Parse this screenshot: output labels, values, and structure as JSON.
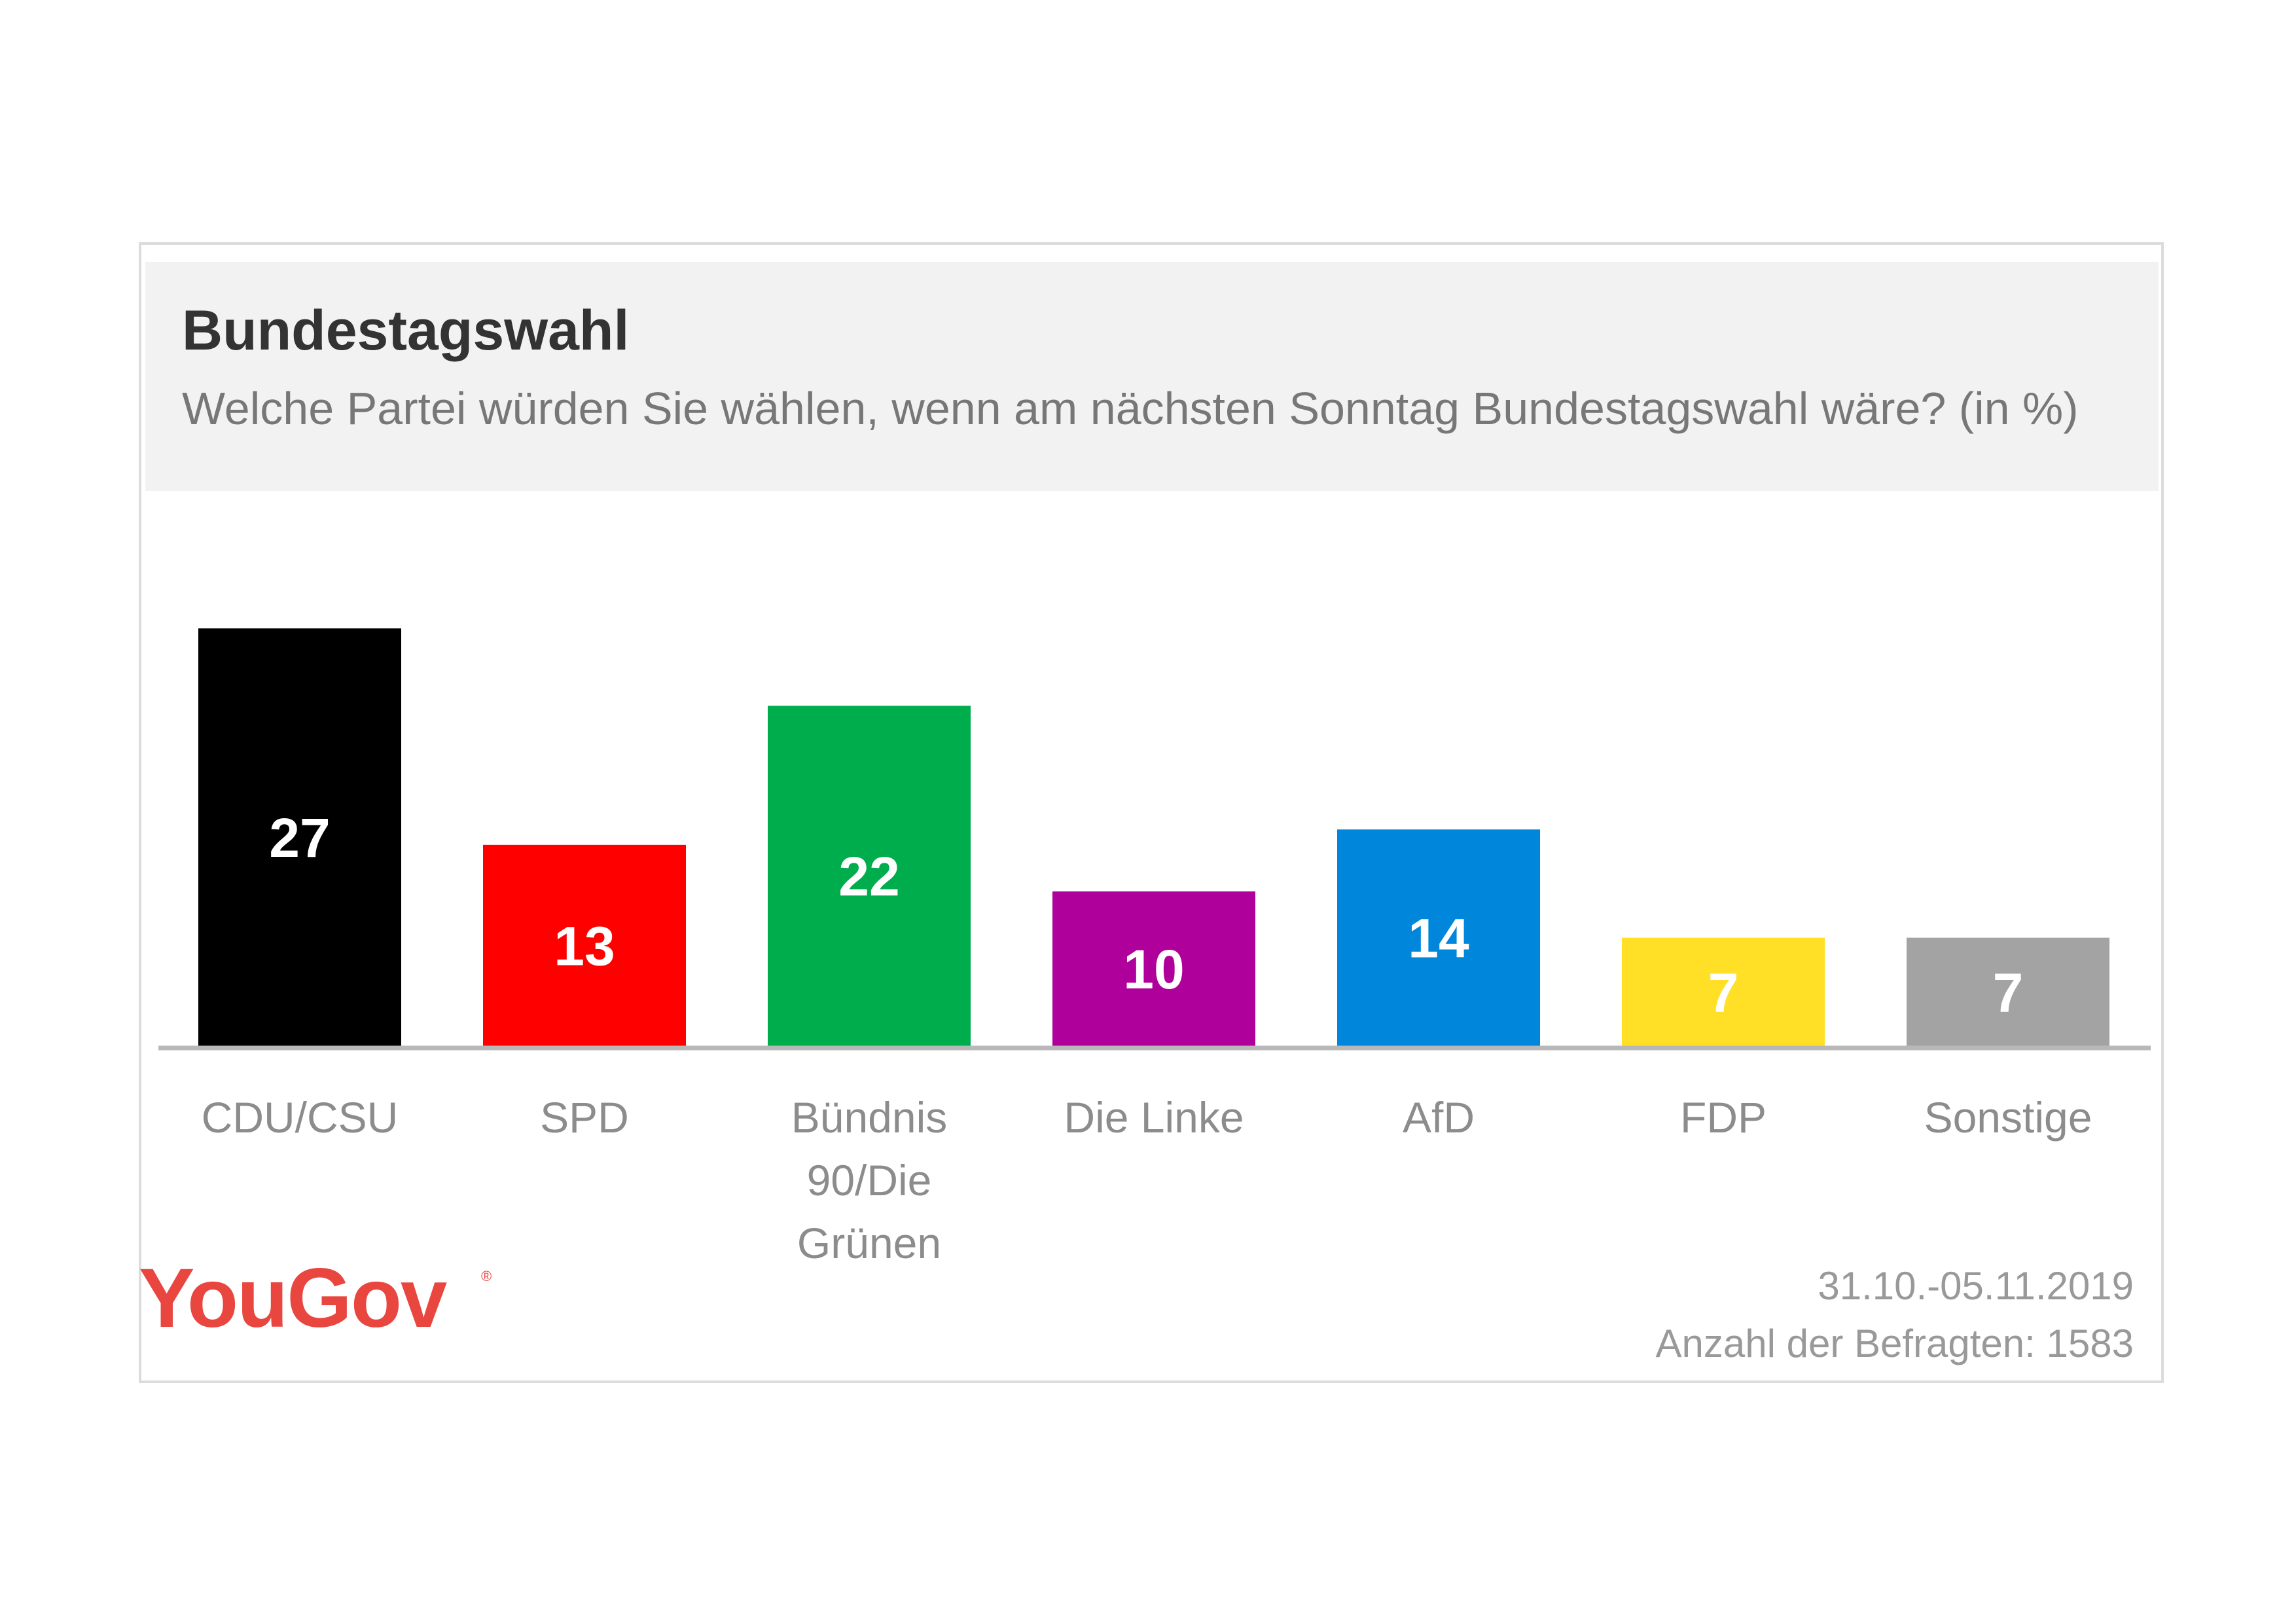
{
  "chart_data": {
    "type": "bar",
    "title": "Bundestagswahl",
    "subtitle": "Welche Partei würden Sie wählen, wenn am nächsten Sonntag Bundestagswahl wäre? (in %)",
    "categories": [
      "CDU/CSU",
      "SPD",
      "Bündnis 90/Die Grünen",
      "Die Linke",
      "AfD",
      "FDP",
      "Sonstige"
    ],
    "category_lines": [
      [
        "CDU/CSU"
      ],
      [
        "SPD"
      ],
      [
        "Bündnis",
        "90/Die",
        "Grünen"
      ],
      [
        "Die Linke"
      ],
      [
        "AfD"
      ],
      [
        "FDP"
      ],
      [
        "Sonstige"
      ]
    ],
    "values": [
      27,
      13,
      22,
      10,
      14,
      7,
      7
    ],
    "colors": [
      "#000000",
      "#ff0000",
      "#00ad4d",
      "#b0009b",
      "#0086da",
      "#ffe027",
      "#a3a3a3"
    ],
    "label_colors": [
      "#ffffff",
      "#ffffff",
      "#ffffff",
      "#ffffff",
      "#ffffff",
      "#ffffff",
      "#ffffff"
    ],
    "ylim": [
      0,
      27
    ],
    "grid": false,
    "xlabel": "",
    "ylabel": ""
  },
  "brand": {
    "logo_text": "YouGov",
    "logo_color": "#e8463f"
  },
  "footer": {
    "date_range": "31.10.-05.11.2019",
    "respondents": "Anzahl der Befragten: 1583"
  }
}
